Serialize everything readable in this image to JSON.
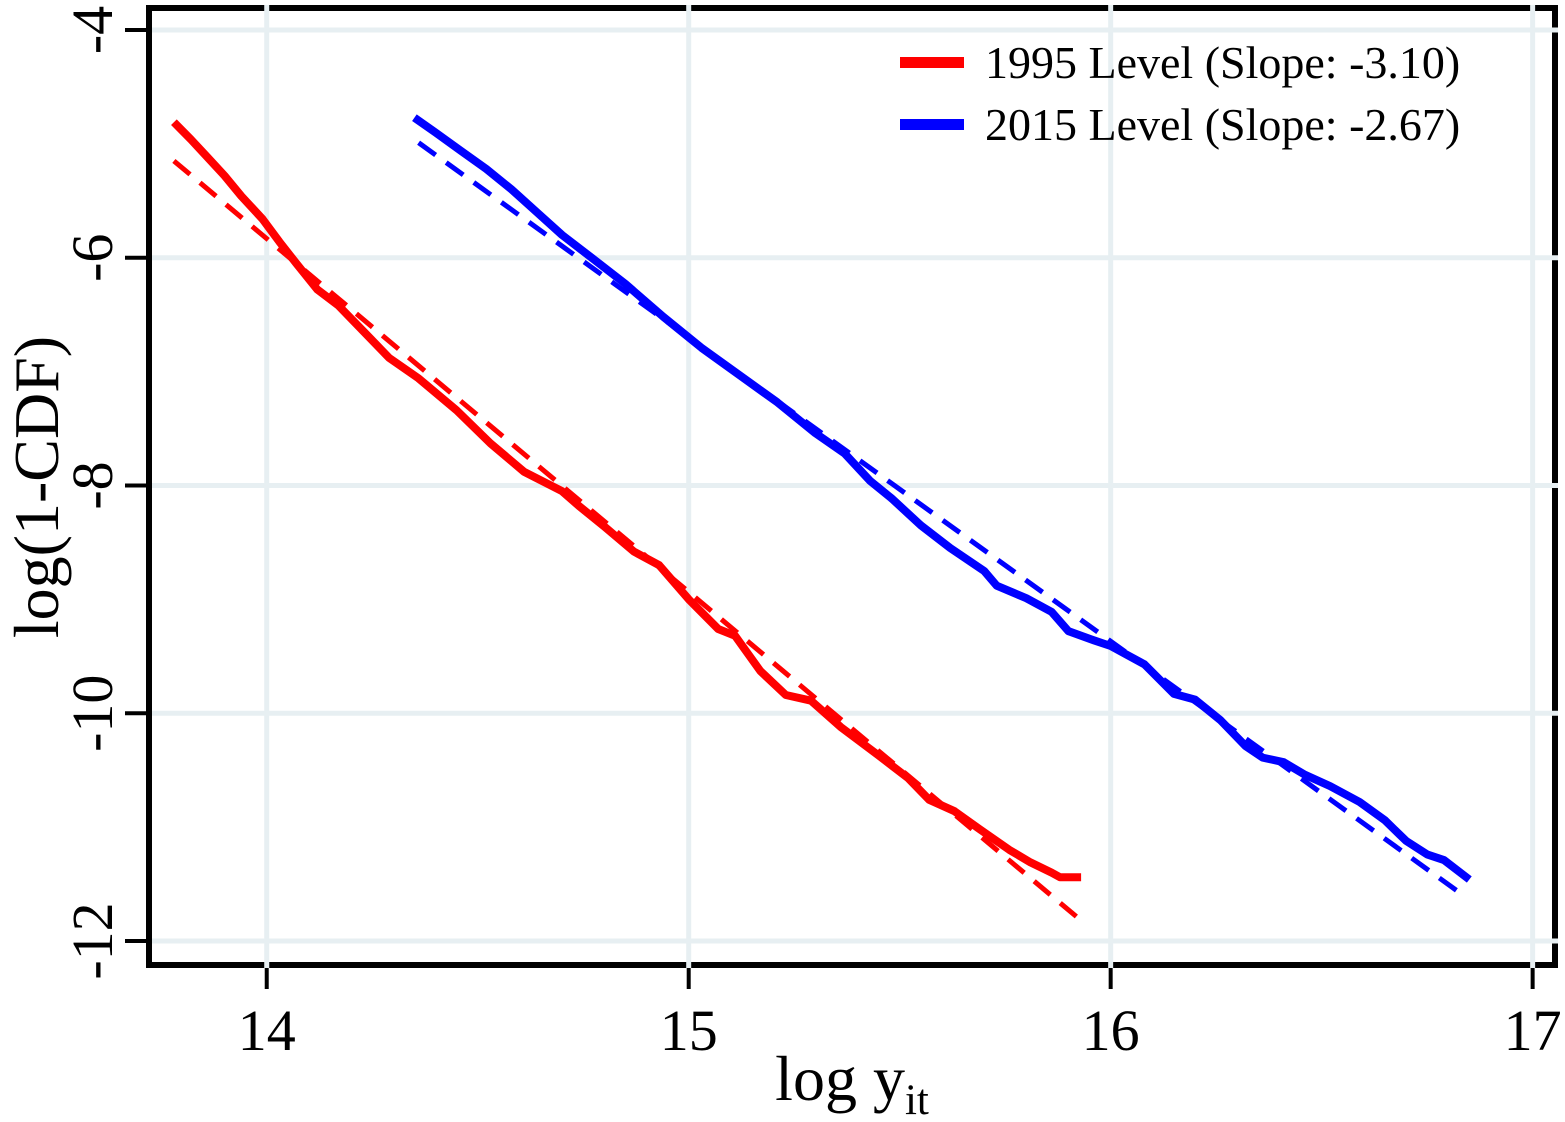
{
  "chart_data": {
    "type": "line",
    "title": "",
    "xlabel": "log y_it",
    "xlabel_main": "log y",
    "xlabel_sub": "it",
    "ylabel": "log(1-CDF)",
    "xlim": [
      13.721,
      17.053
    ],
    "ylim": [
      -12.211,
      -3.807
    ],
    "x_ticks": [
      "14",
      "15",
      "16",
      "17"
    ],
    "x_tick_values": [
      14,
      15,
      16,
      17
    ],
    "y_ticks": [
      "-4",
      "-6",
      "-8",
      "-10",
      "-12"
    ],
    "y_tick_values": [
      -4,
      -6,
      -8,
      -10,
      -12
    ],
    "grid": true,
    "colors": {
      "series_1995": "#ff0000",
      "series_2015": "#0000ff",
      "gridline": "#e7eff2",
      "frame": "#000000",
      "background": "#ffffff"
    },
    "legend": {
      "position": "top-right",
      "entries": [
        {
          "label": "1995 Level (Slope: -3.10)",
          "color": "#ff0000"
        },
        {
          "label": "2015 Level (Slope: -2.67)",
          "color": "#0000ff"
        }
      ]
    },
    "series": [
      {
        "name": "1995 Level",
        "kind": "empirical",
        "color": "#ff0000",
        "style": "solid",
        "stroke_width": 8,
        "points": [
          [
            13.78,
            -4.81
          ],
          [
            13.82,
            -4.96
          ],
          [
            13.86,
            -5.12
          ],
          [
            13.9,
            -5.28
          ],
          [
            13.94,
            -5.46
          ],
          [
            13.99,
            -5.66
          ],
          [
            14.03,
            -5.86
          ],
          [
            14.07,
            -6.05
          ],
          [
            14.12,
            -6.28
          ],
          [
            14.17,
            -6.42
          ],
          [
            14.23,
            -6.65
          ],
          [
            14.29,
            -6.88
          ],
          [
            14.36,
            -7.06
          ],
          [
            14.45,
            -7.34
          ],
          [
            14.53,
            -7.63
          ],
          [
            14.61,
            -7.88
          ],
          [
            14.7,
            -8.05
          ],
          [
            14.74,
            -8.18
          ],
          [
            14.8,
            -8.36
          ],
          [
            14.87,
            -8.58
          ],
          [
            14.93,
            -8.7
          ],
          [
            15.0,
            -9.0
          ],
          [
            15.07,
            -9.26
          ],
          [
            15.11,
            -9.32
          ],
          [
            15.17,
            -9.63
          ],
          [
            15.23,
            -9.84
          ],
          [
            15.29,
            -9.89
          ],
          [
            15.36,
            -10.12
          ],
          [
            15.45,
            -10.37
          ],
          [
            15.52,
            -10.57
          ],
          [
            15.57,
            -10.76
          ],
          [
            15.63,
            -10.86
          ],
          [
            15.69,
            -11.02
          ],
          [
            15.76,
            -11.2
          ],
          [
            15.81,
            -11.31
          ],
          [
            15.86,
            -11.4
          ],
          [
            15.88,
            -11.44
          ],
          [
            15.93,
            -11.44
          ]
        ]
      },
      {
        "name": "1995 fit",
        "kind": "fit",
        "slope": -3.1,
        "color": "#ff0000",
        "style": "dashed",
        "stroke_width": 5,
        "points": [
          [
            13.78,
            -5.15
          ],
          [
            15.93,
            -11.82
          ]
        ]
      },
      {
        "name": "2015 Level",
        "kind": "empirical",
        "color": "#0000ff",
        "style": "solid",
        "stroke_width": 8,
        "points": [
          [
            14.35,
            -4.77
          ],
          [
            14.4,
            -4.9
          ],
          [
            14.46,
            -5.06
          ],
          [
            14.52,
            -5.22
          ],
          [
            14.58,
            -5.4
          ],
          [
            14.64,
            -5.6
          ],
          [
            14.7,
            -5.8
          ],
          [
            14.77,
            -6.0
          ],
          [
            14.85,
            -6.23
          ],
          [
            14.94,
            -6.52
          ],
          [
            15.03,
            -6.79
          ],
          [
            15.12,
            -7.03
          ],
          [
            15.21,
            -7.27
          ],
          [
            15.3,
            -7.54
          ],
          [
            15.37,
            -7.72
          ],
          [
            15.43,
            -7.96
          ],
          [
            15.48,
            -8.11
          ],
          [
            15.55,
            -8.35
          ],
          [
            15.62,
            -8.55
          ],
          [
            15.7,
            -8.75
          ],
          [
            15.73,
            -8.88
          ],
          [
            15.8,
            -8.99
          ],
          [
            15.86,
            -9.11
          ],
          [
            15.9,
            -9.28
          ],
          [
            15.96,
            -9.36
          ],
          [
            16.0,
            -9.41
          ],
          [
            16.08,
            -9.57
          ],
          [
            16.15,
            -9.83
          ],
          [
            16.2,
            -9.88
          ],
          [
            16.26,
            -10.06
          ],
          [
            16.32,
            -10.29
          ],
          [
            16.36,
            -10.39
          ],
          [
            16.41,
            -10.43
          ],
          [
            16.46,
            -10.54
          ],
          [
            16.52,
            -10.64
          ],
          [
            16.59,
            -10.78
          ],
          [
            16.65,
            -10.94
          ],
          [
            16.7,
            -11.12
          ],
          [
            16.75,
            -11.24
          ],
          [
            16.79,
            -11.29
          ],
          [
            16.85,
            -11.46
          ]
        ]
      },
      {
        "name": "2015 fit",
        "kind": "fit",
        "slope": -2.67,
        "color": "#0000ff",
        "style": "dashed",
        "stroke_width": 5,
        "points": [
          [
            14.36,
            -4.99
          ],
          [
            16.84,
            -11.61
          ]
        ]
      }
    ]
  }
}
